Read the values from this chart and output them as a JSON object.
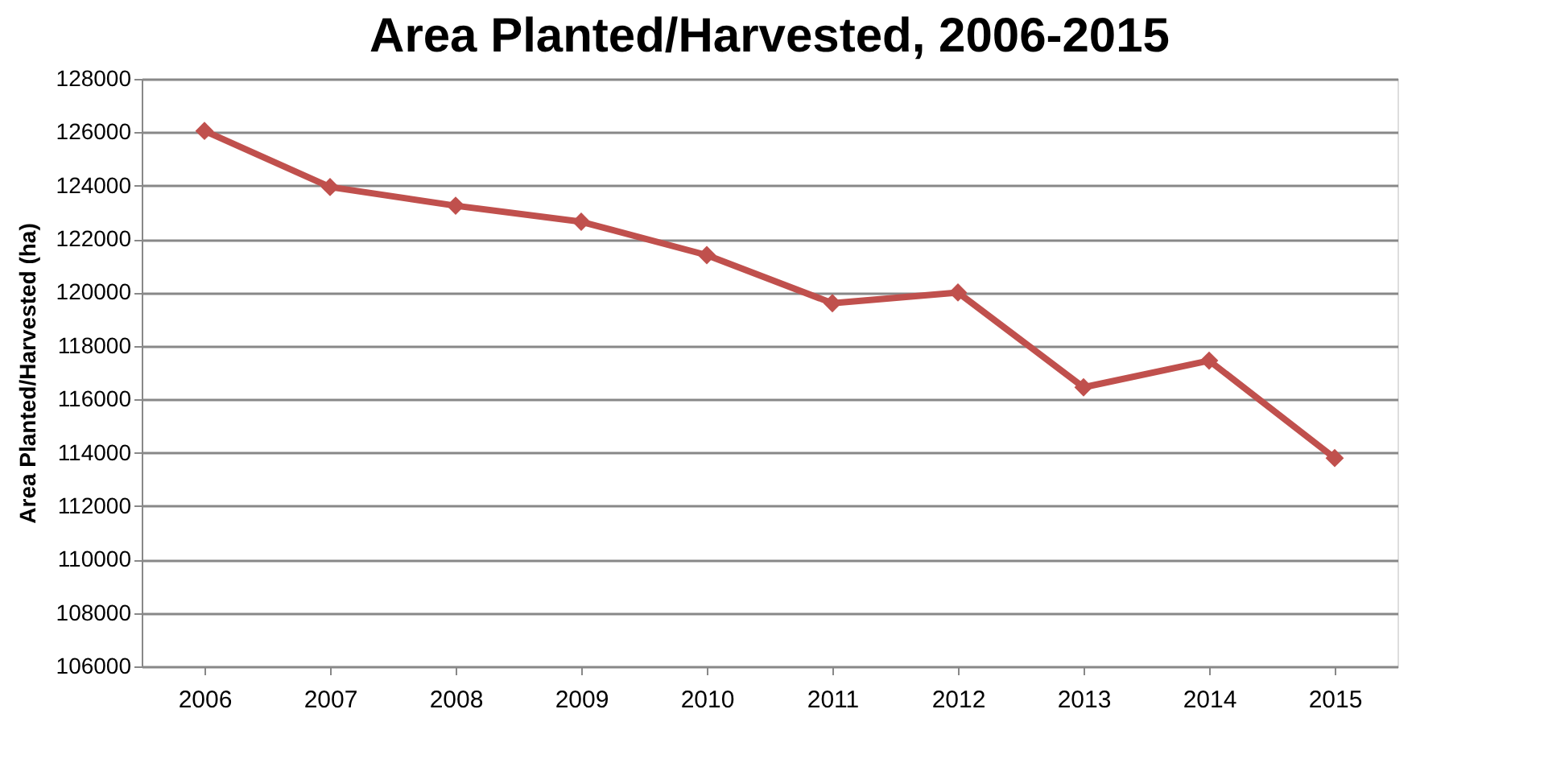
{
  "chart_data": {
    "type": "line",
    "title": "Area Planted/Harvested, 2006-2015",
    "ylabel": "Area Planted/Harvested (ha)",
    "categories": [
      "2006",
      "2007",
      "2008",
      "2009",
      "2010",
      "2011",
      "2012",
      "2013",
      "2014",
      "2015"
    ],
    "series": [
      {
        "color": "#c0504d",
        "values": [
          126050,
          123950,
          123250,
          122650,
          121400,
          119600,
          120000,
          116450,
          117450,
          113800
        ]
      }
    ],
    "ylim": [
      106000,
      128000
    ],
    "yticks": [
      106000,
      108000,
      110000,
      112000,
      114000,
      116000,
      118000,
      120000,
      122000,
      124000,
      126000,
      128000
    ],
    "grid": "y",
    "marker": "diamond",
    "line_style": "solid"
  }
}
